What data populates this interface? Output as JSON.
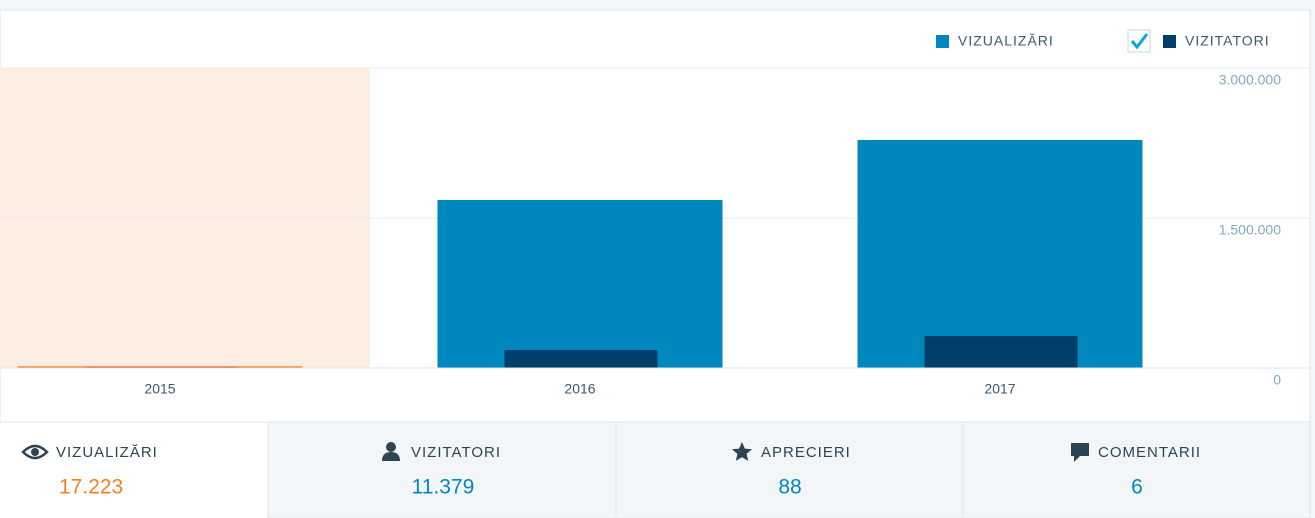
{
  "chart_data": {
    "type": "bar",
    "categories": [
      "2015",
      "2016",
      "2017"
    ],
    "series": [
      {
        "name": "VIZUALIZĂRI",
        "color": "#0087be",
        "highlight_color": "#f0821e",
        "values": [
          17223,
          1680000,
          2280000
        ]
      },
      {
        "name": "VIZITATORI",
        "color": "#003f6a",
        "highlight_color": "#d54e21",
        "values": [
          11379,
          180000,
          320000
        ]
      }
    ],
    "selected_index": 0,
    "highlight_background": "#fdeee3",
    "ylim": [
      0,
      3000000
    ],
    "yticks": [
      0,
      {
        "value": 1500000,
        "label": "1.500.000"
      },
      {
        "value": 3000000,
        "label": "3.000.000"
      }
    ],
    "grid": true
  },
  "summary": [
    {
      "label": "VIZUALIZĂRI",
      "value": "17.223"
    },
    {
      "label": "VIZITATORI",
      "value": "11.379"
    },
    {
      "label": "APRECIERI",
      "value": "88"
    },
    {
      "label": "COMENTARII",
      "value": "6"
    }
  ]
}
